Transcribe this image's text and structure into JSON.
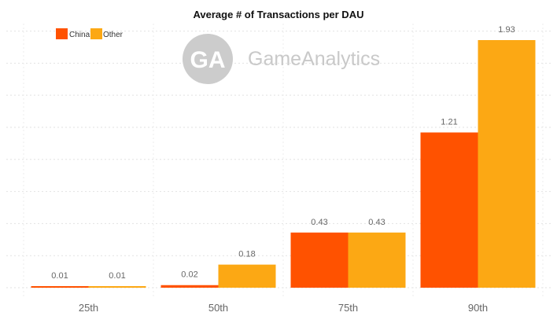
{
  "chart_data": {
    "type": "bar",
    "title": "Average # of Transactions per DAU",
    "categories": [
      "25th",
      "50th",
      "75th",
      "90th"
    ],
    "series": [
      {
        "name": "China",
        "color": "#ff5200",
        "values": [
          0.01,
          0.02,
          0.43,
          1.21
        ],
        "labels": [
          "0.01",
          "0.02",
          "0.43",
          "1.21"
        ]
      },
      {
        "name": "Other",
        "color": "#fca814",
        "values": [
          0.01,
          0.18,
          0.43,
          1.93
        ],
        "labels": [
          "0.01",
          "0.18",
          "0.43",
          "1.93"
        ]
      }
    ],
    "ylim": [
      0,
      2.0
    ],
    "grid": true,
    "legend_position": "top-left"
  },
  "watermark": {
    "logo_text": "GA",
    "brand_text": "GameAnalytics"
  }
}
